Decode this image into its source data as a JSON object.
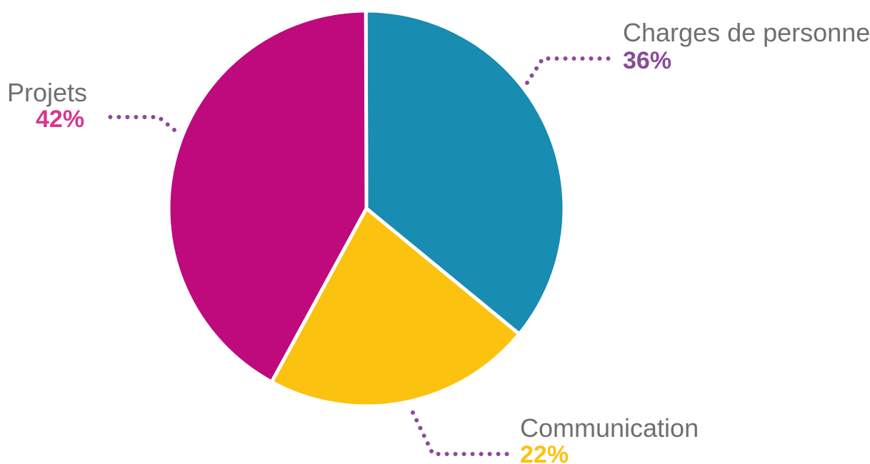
{
  "chart_data": {
    "type": "pie",
    "title": "",
    "slices": [
      {
        "label": "Charges de personnel",
        "value": 36,
        "value_label": "36%",
        "color": "#188cb1",
        "label_color": "#8a4a9b"
      },
      {
        "label": "Communication",
        "value": 22,
        "value_label": "22%",
        "color": "#fbc20f",
        "label_color": "#fbc20f"
      },
      {
        "label": "Projets",
        "value": 42,
        "value_label": "42%",
        "color": "#be0a7c",
        "label_color": "#d8378f"
      }
    ],
    "leader_line_color": "#8a4a9b",
    "legend": "none"
  }
}
